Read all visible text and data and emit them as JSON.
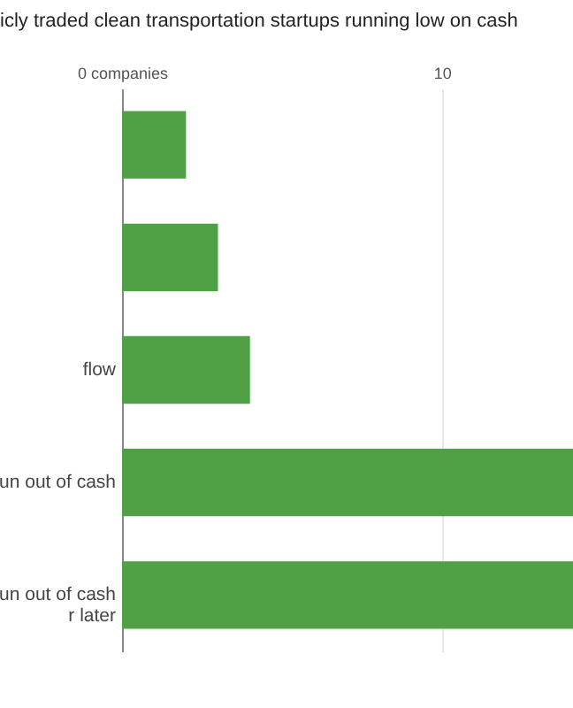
{
  "chart_data": {
    "type": "bar",
    "orientation": "horizontal",
    "title": "icly traded clean transportation startups running low on cash",
    "categories": [
      null,
      null,
      "flow",
      "un out of cash",
      "un out of cash\nr later"
    ],
    "values": [
      2,
      3,
      4,
      14.1,
      14.1
    ],
    "color": "#50a046",
    "xlim": [
      0,
      14.1
    ],
    "xticks": [
      {
        "value": 0,
        "label": "0 companies"
      },
      10
    ],
    "grid": "x"
  }
}
